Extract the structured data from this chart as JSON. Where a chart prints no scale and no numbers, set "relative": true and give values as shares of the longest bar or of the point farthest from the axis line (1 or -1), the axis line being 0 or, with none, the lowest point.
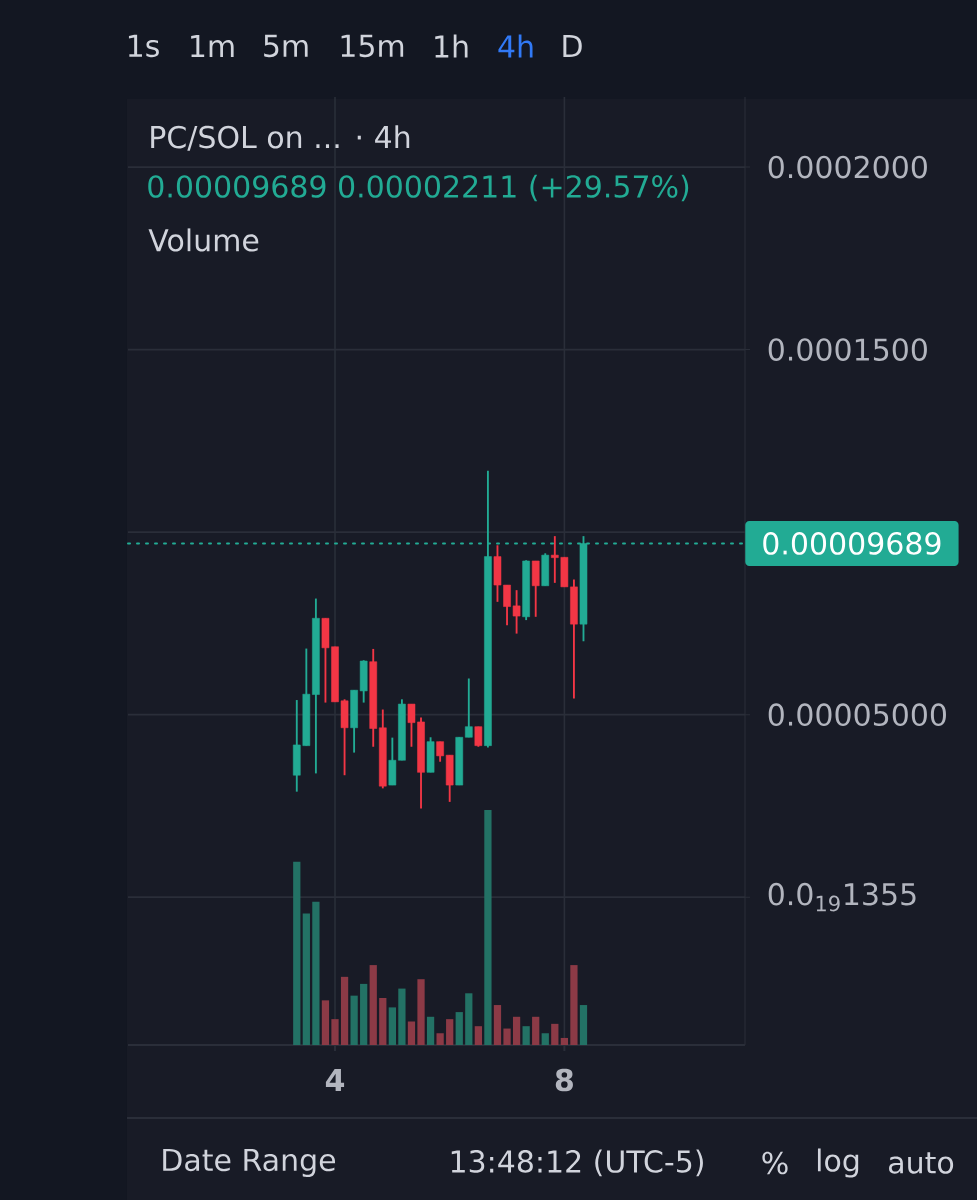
{
  "chart_data": [
    {
      "type": "candlestick",
      "title": "PC/SOL on ... · 4h",
      "subtitle": "0.00009689 0.00002211 (+29.57%)",
      "x": [
        3.3333,
        3.5,
        3.6667,
        3.8333,
        4,
        4.1667,
        4.3333,
        4.5,
        4.6667,
        4.8333,
        5,
        5.1667,
        5.3333,
        5.5,
        5.6667,
        5.8333,
        6,
        6.1667,
        6.3333,
        6.5,
        6.6667,
        6.8333,
        7,
        7.1667,
        7.3333,
        7.5,
        7.6667,
        7.8333,
        8,
        8.1667,
        8.3333
      ],
      "ohlc": [
        [
          3.34e-05,
          5.4e-05,
          2.89e-05,
          4.17e-05
        ],
        [
          4.15e-05,
          6.81e-05,
          4.15e-05,
          5.56e-05
        ],
        [
          5.55e-05,
          8.18e-05,
          3.39e-05,
          7.64e-05
        ],
        [
          7.64e-05,
          7.64e-05,
          5.33e-05,
          6.83e-05
        ],
        [
          6.86e-05,
          6.86e-05,
          5.35e-05,
          5.35e-05
        ],
        [
          5.38e-05,
          5.42e-05,
          3.34e-05,
          4.64e-05
        ],
        [
          4.64e-05,
          5.67e-05,
          3.96e-05,
          5.67e-05
        ],
        [
          5.65e-05,
          6.49e-05,
          5.33e-05,
          6.47e-05
        ],
        [
          6.45e-05,
          6.8e-05,
          4.12e-05,
          4.62e-05
        ],
        [
          4.64e-05,
          5.14e-05,
          2.98e-05,
          3.04e-05
        ],
        [
          3.07e-05,
          4.37e-05,
          3.07e-05,
          3.75e-05
        ],
        [
          3.75e-05,
          5.42e-05,
          3.75e-05,
          5.29e-05
        ],
        [
          5.29e-05,
          5.29e-05,
          4.12e-05,
          4.78e-05
        ],
        [
          4.8e-05,
          4.92e-05,
          2.43e-05,
          3.42e-05
        ],
        [
          3.42e-05,
          4.38e-05,
          3.42e-05,
          4.26e-05
        ],
        [
          4.26e-05,
          4.26e-05,
          3.71e-05,
          3.87e-05
        ],
        [
          3.89e-05,
          3.89e-05,
          2.61e-05,
          3.07e-05
        ],
        [
          3.07e-05,
          4.38e-05,
          3.07e-05,
          4.38e-05
        ],
        [
          4.38e-05,
          5.99e-05,
          4.38e-05,
          4.67e-05
        ],
        [
          4.67e-05,
          4.67e-05,
          4.12e-05,
          4.15e-05
        ],
        [
          4.15e-05,
          0.0001168,
          4.1e-05,
          9.33e-05
        ],
        [
          9.33e-05,
          9.64e-05,
          8.09e-05,
          8.55e-05
        ],
        [
          8.55e-05,
          8.55e-05,
          7.45e-05,
          7.96e-05
        ],
        [
          7.98e-05,
          8.41e-05,
          7.22e-05,
          7.7e-05
        ],
        [
          7.68e-05,
          9.23e-05,
          7.59e-05,
          9.21e-05
        ],
        [
          9.21e-05,
          9.21e-05,
          7.68e-05,
          8.53e-05
        ],
        [
          8.53e-05,
          9.42e-05,
          8.53e-05,
          9.37e-05
        ],
        [
          9.37e-05,
          9.89e-05,
          8.61e-05,
          9.3e-05
        ],
        [
          9.31e-05,
          9.31e-05,
          8.5e-05,
          8.5e-05
        ],
        [
          8.5e-05,
          8.7e-05,
          5.44e-05,
          7.478e-05
        ],
        [
          7.478e-05,
          9.89e-05,
          7.01e-05,
          9.689e-05
        ]
      ],
      "colors": [
        "#22ab94",
        "#22ab94",
        "#22ab94",
        "#f23645",
        "#f23645",
        "#f23645",
        "#22ab94",
        "#22ab94",
        "#f23645",
        "#f23645",
        "#22ab94",
        "#22ab94",
        "#f23645",
        "#f23645",
        "#22ab94",
        "#f23645",
        "#f23645",
        "#22ab94",
        "#22ab94",
        "#f23645",
        "#22ab94",
        "#f23645",
        "#f23645",
        "#f23645",
        "#22ab94",
        "#f23645",
        "#22ab94",
        "#f23645",
        "#f23645",
        "#f23645",
        "#22ab94"
      ],
      "xlim": [
        0.39,
        11.15
      ],
      "ylim": [
        -4.05e-05,
        0.0002192
      ],
      "xticks": [
        4,
        8
      ],
      "yticks": [
        {
          "value": 0,
          "label": "0.0$_{19}$1355"
        },
        {
          "value": 5e-05,
          "label": "0.00005000"
        },
        {
          "value": 0.0001,
          "label": null
        },
        {
          "value": 0.00015,
          "label": "0.0001500"
        },
        {
          "value": 0.0002,
          "label": "0.0002000"
        }
      ],
      "grid": true,
      "ref_lines": [
        {
          "axis": "y",
          "value": 9.689e-05,
          "label": "0.00009689",
          "color": "#22ab94",
          "line_style": "dotted"
        }
      ],
      "annotations": [
        "1s",
        "1m",
        "5m",
        "15m",
        "1h",
        "4h",
        "D",
        "Date Range",
        "13:48:12 (UTC-5)",
        "%",
        "log",
        "auto"
      ]
    },
    {
      "type": "bar",
      "title": "Volume",
      "relative": true,
      "x": [
        3.3333,
        3.5,
        3.6667,
        3.8333,
        4,
        4.1667,
        4.3333,
        4.5,
        4.6667,
        4.8333,
        5,
        5.1667,
        5.3333,
        5.5,
        5.6667,
        5.8333,
        6,
        6.1667,
        6.3333,
        6.5,
        6.6667,
        6.8333,
        7,
        7.1667,
        7.3333,
        7.5,
        7.6667,
        7.8333,
        8,
        8.1667,
        8.3333
      ],
      "values": [
        0.78,
        0.56,
        0.61,
        0.19,
        0.11,
        0.29,
        0.21,
        0.26,
        0.34,
        0.2,
        0.16,
        0.24,
        0.1,
        0.28,
        0.12,
        0.05,
        0.11,
        0.14,
        0.22,
        0.08,
        1,
        0.17,
        0.07,
        0.12,
        0.08,
        0.12,
        0.05,
        0.09,
        0.03,
        0.34,
        0.17
      ],
      "colors": [
        "#237265",
        "#237265",
        "#237265",
        "#8c3a46",
        "#8c3a46",
        "#8c3a46",
        "#237265",
        "#237265",
        "#8c3a46",
        "#8c3a46",
        "#237265",
        "#237265",
        "#8c3a46",
        "#8c3a46",
        "#237265",
        "#8c3a46",
        "#8c3a46",
        "#237265",
        "#237265",
        "#8c3a46",
        "#237265",
        "#8c3a46",
        "#8c3a46",
        "#8c3a46",
        "#237265",
        "#8c3a46",
        "#237265",
        "#8c3a46",
        "#8c3a46",
        "#8c3a46",
        "#237265"
      ],
      "xlim": [
        0.39,
        11.15
      ],
      "xticks": [
        4,
        8
      ],
      "tick_labels": false
    }
  ]
}
